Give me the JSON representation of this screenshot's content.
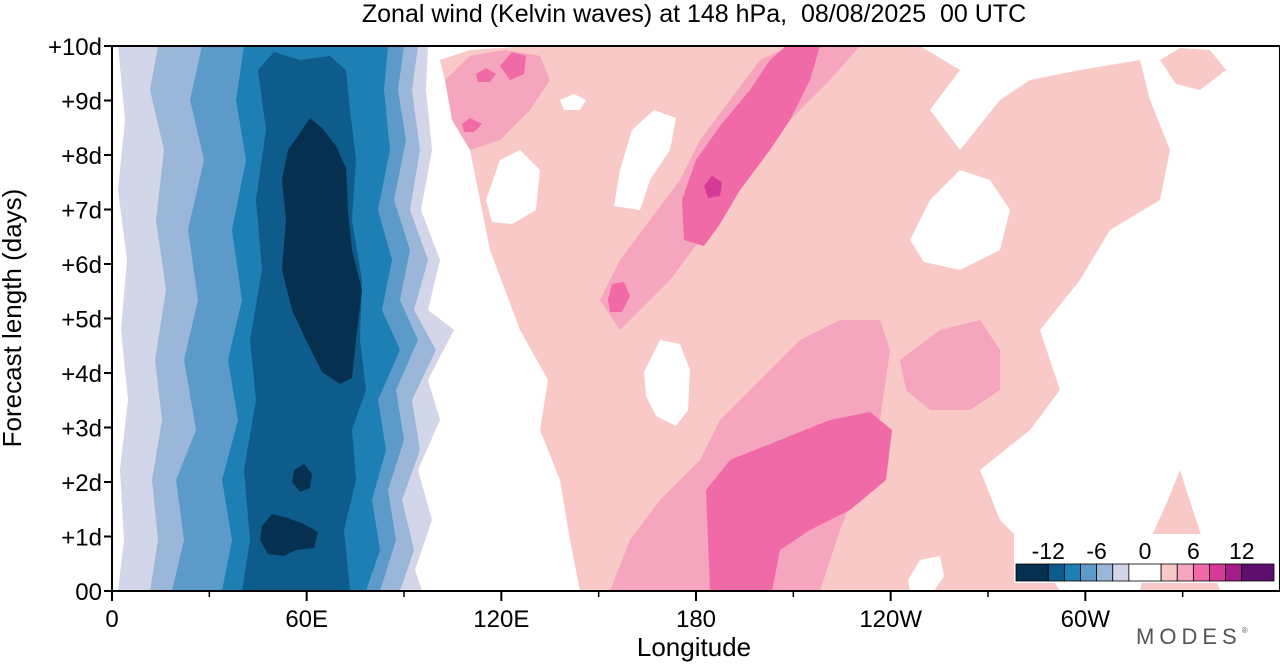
{
  "chart_data": {
    "type": "heatmap",
    "title": "Zonal wind (Kelvin waves) at 148 hPa,  08/08/2025  00 UTC",
    "xlabel": "Longitude",
    "ylabel": "Forecast length (days)",
    "xlim": [
      0,
      360
    ],
    "ylim": [
      0,
      10
    ],
    "x_ticks": [
      {
        "lon": 0,
        "label": "0"
      },
      {
        "lon": 60,
        "label": "60E"
      },
      {
        "lon": 120,
        "label": "120E"
      },
      {
        "lon": 180,
        "label": "180"
      },
      {
        "lon": 240,
        "label": "120W"
      },
      {
        "lon": 300,
        "label": "60W"
      }
    ],
    "x_minor_ticks": [
      30,
      90,
      150,
      210,
      270,
      330
    ],
    "y_ticks": [
      {
        "day": 0,
        "label": "00"
      },
      {
        "day": 1,
        "label": "+1d"
      },
      {
        "day": 2,
        "label": "+2d"
      },
      {
        "day": 3,
        "label": "+3d"
      },
      {
        "day": 4,
        "label": "+4d"
      },
      {
        "day": 5,
        "label": "+5d"
      },
      {
        "day": 6,
        "label": "+6d"
      },
      {
        "day": 7,
        "label": "+7d"
      },
      {
        "day": 8,
        "label": "+8d"
      },
      {
        "day": 9,
        "label": "+9d"
      },
      {
        "day": 10,
        "label": "+10d"
      }
    ],
    "colorbar": {
      "labels": [
        {
          "value": -12,
          "label": "-12"
        },
        {
          "value": -6,
          "label": "-6"
        },
        {
          "value": 0,
          "label": "0"
        },
        {
          "value": 6,
          "label": "6"
        },
        {
          "value": 12,
          "label": "12"
        }
      ],
      "bins": [
        {
          "from": -16,
          "to": -12,
          "color": "#06304f"
        },
        {
          "from": -12,
          "to": -10,
          "color": "#0e5c8c"
        },
        {
          "from": -10,
          "to": -8,
          "color": "#1e7fb5"
        },
        {
          "from": -8,
          "to": -6,
          "color": "#5c9bc9"
        },
        {
          "from": -6,
          "to": -4,
          "color": "#9ab7d9"
        },
        {
          "from": -4,
          "to": -2,
          "color": "#d3d5e8"
        },
        {
          "from": -2,
          "to": 2,
          "color": "#ffffff"
        },
        {
          "from": 2,
          "to": 4,
          "color": "#f8c9c6"
        },
        {
          "from": 4,
          "to": 6,
          "color": "#f5a5be"
        },
        {
          "from": 6,
          "to": 8,
          "color": "#ef6aa6"
        },
        {
          "from": 8,
          "to": 10,
          "color": "#d63a96"
        },
        {
          "from": 10,
          "to": 12,
          "color": "#a51b87"
        },
        {
          "from": 12,
          "to": 16,
          "color": "#5e0f6e"
        }
      ]
    },
    "features": [
      {
        "type": "easterly",
        "lon_range": [
          15,
          100
        ],
        "days": [
          0,
          10
        ],
        "min_value": -14,
        "core_lon": 65,
        "core_days": [
          4,
          8.6
        ]
      },
      {
        "type": "easterly",
        "lon_range": [
          45,
          70
        ],
        "days": [
          0.8,
          1.3
        ],
        "min_value": -13
      },
      {
        "type": "westerly",
        "lon_range": [
          175,
          230
        ],
        "days": [
          0,
          3.2
        ],
        "max_value": 9,
        "axis": "tilted eastward with forecast length"
      },
      {
        "type": "westerly",
        "lon_range": [
          170,
          205
        ],
        "days": [
          6.4,
          10
        ],
        "max_value": 11,
        "peak_lon": 184,
        "peak_day": 7.5
      },
      {
        "type": "westerly",
        "lon_range": [
          150,
          160
        ],
        "days": [
          5,
          5.6
        ],
        "max_value": 9
      },
      {
        "type": "westerly",
        "lon_range": [
          105,
          125
        ],
        "days": [
          8.7,
          9.7
        ],
        "max_value": 8
      }
    ]
  },
  "branding": {
    "text": "MODES",
    "mark": "®"
  }
}
